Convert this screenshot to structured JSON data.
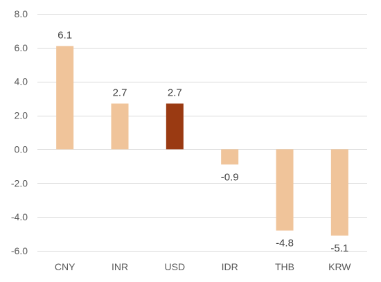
{
  "chart_data": {
    "type": "bar",
    "categories": [
      "CNY",
      "INR",
      "USD",
      "IDR",
      "THB",
      "KRW"
    ],
    "values": [
      6.1,
      2.7,
      2.7,
      -0.9,
      -4.8,
      -5.1
    ],
    "data_labels": [
      "6.1",
      "2.7",
      "2.7",
      "-0.9",
      "-4.8",
      "-5.1"
    ],
    "ylim": [
      -6.0,
      8.0
    ],
    "yticks": [
      -6.0,
      -4.0,
      -2.0,
      0.0,
      2.0,
      4.0,
      6.0,
      8.0
    ],
    "ytick_labels": [
      "-6.0",
      "-4.0",
      "-2.0",
      "0.0",
      "2.0",
      "4.0",
      "6.0",
      "8.0"
    ],
    "grid": true,
    "legend": "none",
    "colors": {
      "default": "#f0c49a",
      "highlight": "#9a3a12",
      "highlight_category": "USD"
    }
  }
}
